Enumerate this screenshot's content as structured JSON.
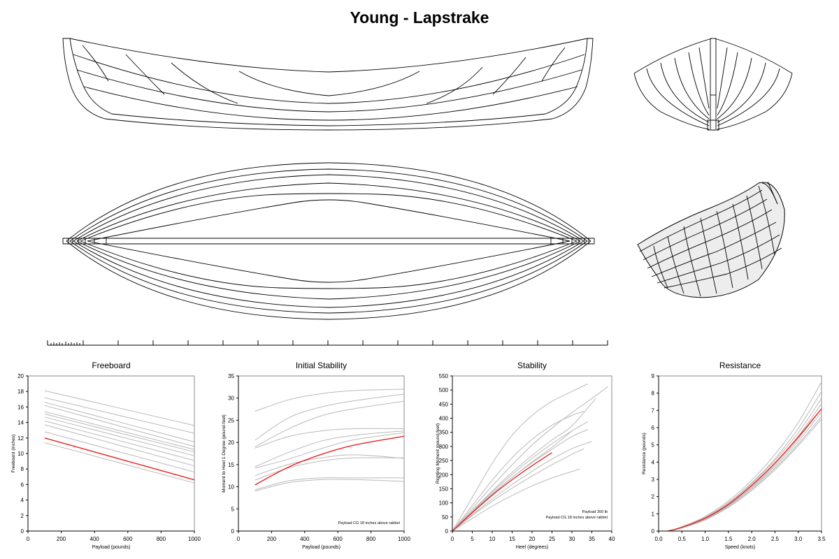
{
  "title": "Young - Lapstrake",
  "colors": {
    "highlight": "#e8231f",
    "others": "#b9b9b9",
    "axis": "#000000"
  },
  "chart_data": [
    {
      "type": "line",
      "title": "Freeboard",
      "xlabel": "Payload (pounds)",
      "ylabel": "Freeboard (inches)",
      "xlim": [
        0,
        1000
      ],
      "ylim": [
        0,
        20
      ],
      "xticks": [
        0,
        200,
        400,
        600,
        800,
        1000
      ],
      "yticks": [
        0,
        2,
        4,
        6,
        8,
        10,
        12,
        14,
        16,
        18,
        20
      ],
      "x": [
        100,
        1000
      ],
      "highlight": {
        "name": "Young - Lapstrake",
        "values": [
          12.0,
          6.6
        ]
      },
      "comparison": [
        {
          "values": [
            18.1,
            13.6
          ]
        },
        {
          "values": [
            17.2,
            12.6
          ]
        },
        {
          "values": [
            16.6,
            11.5
          ]
        },
        {
          "values": [
            16.2,
            10.9
          ]
        },
        {
          "values": [
            15.4,
            10.5
          ]
        },
        {
          "values": [
            15.1,
            10.2
          ]
        },
        {
          "values": [
            14.7,
            9.7
          ]
        },
        {
          "values": [
            14.2,
            9.1
          ]
        },
        {
          "values": [
            13.7,
            8.4
          ]
        },
        {
          "values": [
            12.8,
            7.6
          ]
        },
        {
          "values": [
            11.4,
            6.2
          ]
        }
      ],
      "annotations": []
    },
    {
      "type": "line",
      "title": "Initial Stability",
      "xlabel": "Payload (pounds)",
      "ylabel": "Moment to Heel 1 Degree (pound-feet)",
      "xlim": [
        0,
        1000
      ],
      "ylim": [
        0,
        35
      ],
      "xticks": [
        0,
        200,
        400,
        600,
        800,
        1000
      ],
      "yticks": [
        0,
        5,
        10,
        15,
        20,
        25,
        30,
        35
      ],
      "x": [
        100,
        300,
        500,
        700,
        1000
      ],
      "highlight": {
        "name": "Young - Lapstrake",
        "values": [
          10.4,
          14.4,
          17.3,
          19.4,
          21.4
        ]
      },
      "comparison": [
        {
          "values": [
            27.0,
            29.6,
            31.0,
            31.7,
            32.0
          ]
        },
        {
          "values": [
            20.5,
            25.5,
            28.0,
            29.4,
            30.9
          ]
        },
        {
          "values": [
            19.0,
            23.0,
            26.0,
            27.6,
            29.3
          ]
        },
        {
          "values": [
            18.7,
            21.3,
            22.6,
            23.1,
            23.1
          ]
        },
        {
          "values": [
            14.5,
            17.7,
            20.3,
            21.6,
            22.6
          ]
        },
        {
          "values": [
            14.2,
            16.2,
            18.6,
            20.6,
            22.2
          ]
        },
        {
          "values": [
            12.5,
            15.0,
            16.5,
            17.2,
            16.4
          ]
        },
        {
          "values": [
            11.5,
            14.2,
            15.8,
            16.5,
            16.5
          ]
        },
        {
          "values": [
            9.3,
            11.3,
            12.0,
            12.0,
            12.0
          ]
        },
        {
          "values": [
            9.0,
            10.9,
            11.6,
            11.6,
            11.2
          ]
        }
      ],
      "annotations": [
        "Payload CG 18 inches above rabbet"
      ]
    },
    {
      "type": "line",
      "title": "Stability",
      "xlabel": "Heel  (degrees)",
      "ylabel": "Righting Moment (pound-feet)",
      "xlim": [
        0,
        40
      ],
      "ylim": [
        0,
        550
      ],
      "xticks": [
        0,
        5,
        10,
        15,
        20,
        25,
        30,
        35,
        40
      ],
      "yticks": [
        0,
        50,
        100,
        150,
        200,
        250,
        300,
        350,
        400,
        450,
        500,
        550
      ],
      "highlight": {
        "name": "Young - Lapstrake",
        "x": [
          0,
          5,
          10,
          15,
          20,
          25
        ],
        "values": [
          0,
          65,
          127,
          182,
          232,
          278
        ]
      },
      "comparison": [
        {
          "x": [
            0,
            5,
            10,
            15,
            20,
            25,
            30,
            34
          ],
          "values": [
            0,
            120,
            240,
            340,
            410,
            460,
            495,
            522
          ]
        },
        {
          "x": [
            0,
            5,
            10,
            15,
            20,
            25,
            30,
            35,
            39
          ],
          "values": [
            0,
            80,
            160,
            235,
            305,
            365,
            420,
            470,
            512
          ]
        },
        {
          "x": [
            0,
            5,
            10,
            15,
            20,
            25,
            30,
            33
          ],
          "values": [
            0,
            90,
            180,
            260,
            325,
            375,
            410,
            425
          ]
        },
        {
          "x": [
            0,
            5,
            10,
            15,
            20,
            25,
            30,
            36
          ],
          "values": [
            0,
            72,
            142,
            208,
            268,
            323,
            373,
            470
          ]
        },
        {
          "x": [
            0,
            5,
            10,
            15,
            20,
            25,
            30,
            34
          ],
          "values": [
            0,
            70,
            138,
            200,
            258,
            310,
            355,
            388
          ]
        },
        {
          "x": [
            0,
            5,
            10,
            15,
            20,
            25,
            30,
            34
          ],
          "values": [
            0,
            68,
            130,
            190,
            242,
            290,
            335,
            360
          ]
        },
        {
          "x": [
            0,
            5,
            10,
            15,
            20,
            25,
            30
          ],
          "values": [
            0,
            68,
            132,
            190,
            245,
            297,
            355
          ]
        },
        {
          "x": [
            0,
            5,
            10,
            15,
            20,
            25,
            30,
            35
          ],
          "values": [
            0,
            58,
            113,
            165,
            212,
            255,
            292,
            318
          ]
        },
        {
          "x": [
            0,
            5,
            10,
            15,
            20,
            25,
            30,
            33
          ],
          "values": [
            0,
            55,
            105,
            152,
            195,
            235,
            272,
            292
          ]
        },
        {
          "x": [
            0,
            5,
            10,
            15,
            20,
            25,
            32
          ],
          "values": [
            0,
            45,
            88,
            126,
            160,
            188,
            220
          ]
        }
      ],
      "annotations": [
        "Payload 300 lb",
        "Payload CG 18 inches above rabbet"
      ]
    },
    {
      "type": "line",
      "title": "Resistance",
      "xlabel": "Speed  (knots)",
      "ylabel": "Resistance (pounds)",
      "xlim": [
        0.0,
        3.5
      ],
      "ylim": [
        0,
        9
      ],
      "xticks": [
        0.0,
        0.5,
        1.0,
        1.5,
        2.0,
        2.5,
        3.0,
        3.5
      ],
      "xtick_labels": [
        "0.0",
        "0.5",
        "1.0",
        "1.5",
        "2.0",
        "2.5",
        "3.0",
        "3.5"
      ],
      "yticks": [
        0,
        1,
        2,
        3,
        4,
        5,
        6,
        7,
        8,
        9
      ],
      "x": [
        0.2,
        0.5,
        1.0,
        1.5,
        2.0,
        2.5,
        3.0,
        3.5
      ],
      "highlight": {
        "name": "Young - Lapstrake",
        "values": [
          0.0,
          0.22,
          0.75,
          1.55,
          2.65,
          3.95,
          5.45,
          7.1
        ]
      },
      "comparison": [
        {
          "values": [
            0.0,
            0.25,
            0.85,
            1.75,
            2.95,
            4.45,
            6.3,
            8.65
          ]
        },
        {
          "values": [
            0.0,
            0.23,
            0.8,
            1.65,
            2.8,
            4.2,
            5.95,
            8.1
          ]
        },
        {
          "values": [
            0.0,
            0.22,
            0.78,
            1.6,
            2.75,
            4.1,
            5.7,
            7.7
          ]
        },
        {
          "values": [
            0.0,
            0.21,
            0.74,
            1.55,
            2.62,
            3.95,
            5.5,
            7.4
          ]
        },
        {
          "values": [
            0.0,
            0.2,
            0.72,
            1.5,
            2.55,
            3.85,
            5.35,
            7.1
          ]
        },
        {
          "values": [
            0.0,
            0.19,
            0.7,
            1.47,
            2.5,
            3.75,
            5.2,
            6.9
          ]
        },
        {
          "values": [
            0.0,
            0.18,
            0.67,
            1.42,
            2.42,
            3.65,
            5.05,
            6.65
          ]
        },
        {
          "values": [
            0.0,
            0.17,
            0.64,
            1.38,
            2.35,
            3.55,
            4.95,
            6.5
          ]
        }
      ],
      "annotations": []
    }
  ]
}
